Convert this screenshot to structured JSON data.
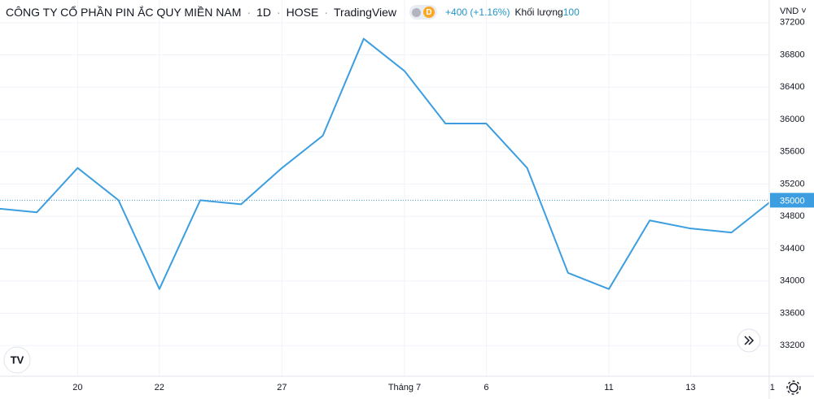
{
  "chart_data": {
    "type": "line",
    "title": "CÔNG TY CỔ PHẦN PIN ẮC QUY MIỀN NAM",
    "interval": "1D",
    "exchange": "HOSE",
    "source": "TradingView",
    "badge": "D",
    "change": "+400 (+1.16%)",
    "volume_label": "Khối lượng",
    "volume": 100,
    "currency": "VND",
    "categories": [
      null,
      null,
      "20",
      null,
      "22",
      null,
      null,
      "27",
      null,
      null,
      "Tháng 7",
      null,
      "6",
      null,
      null,
      "11",
      null,
      "13",
      null,
      "1"
    ],
    "values": [
      34900,
      34850,
      35400,
      35000,
      33900,
      35000,
      34950,
      35400,
      35800,
      37000,
      36600,
      35950,
      35950,
      35400,
      34100,
      33900,
      34750,
      34650,
      34600,
      35000
    ],
    "color": "#3c9ee0",
    "ylim": [
      32820,
      37480
    ],
    "yticks": [
      33200,
      33600,
      34000,
      34400,
      34800,
      35200,
      35600,
      36000,
      36400,
      36800,
      37200
    ],
    "grid": true
  }
}
